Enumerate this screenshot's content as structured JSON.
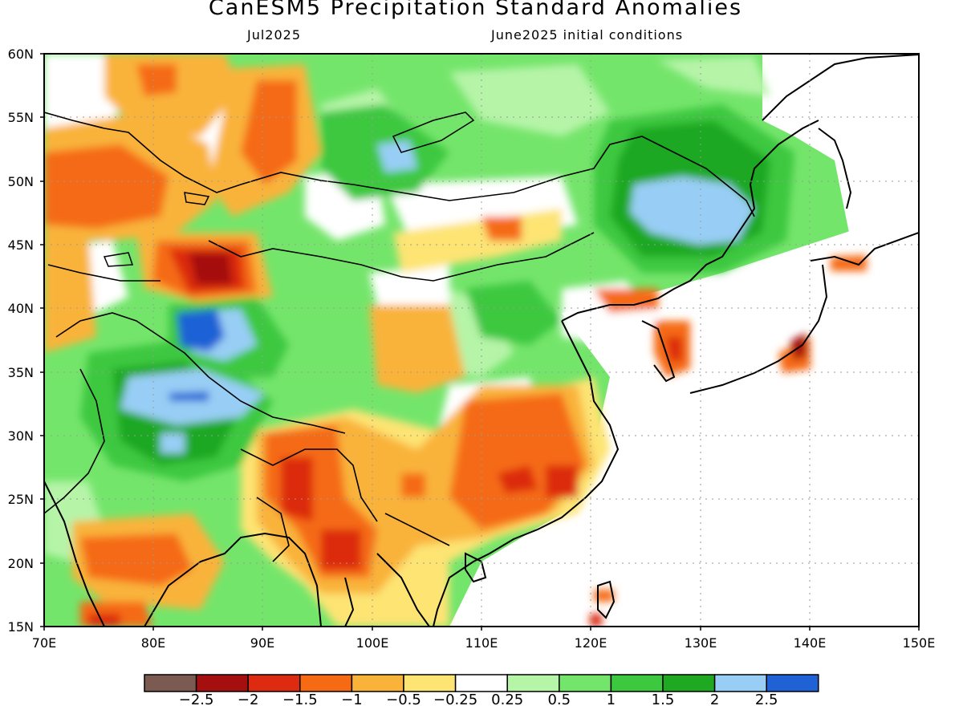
{
  "title": "CanESM5 Precipitation Standard Anomalies",
  "subtitle_left": "Jul2025",
  "subtitle_right": "June2025 initial conditions",
  "lat_ticks": [
    "60N",
    "55N",
    "50N",
    "45N",
    "40N",
    "35N",
    "30N",
    "25N",
    "20N",
    "15N"
  ],
  "lon_ticks": [
    "70E",
    "80E",
    "90E",
    "100E",
    "110E",
    "120E",
    "130E",
    "140E",
    "150E"
  ],
  "colorbar": {
    "colors": [
      "#7b5a52",
      "#a50f0f",
      "#dc2b10",
      "#f56a13",
      "#f9b33b",
      "#fde473",
      "#ffffff",
      "#b6f4a8",
      "#74e56b",
      "#3cc83f",
      "#1fa821",
      "#98cef5",
      "#1f62d6"
    ],
    "labels": [
      "−2.5",
      "−2",
      "−1.5",
      "−1",
      "−0.5",
      "−0.25",
      "0.25",
      "0.5",
      "1",
      "1.5",
      "2",
      "2.5"
    ]
  }
}
